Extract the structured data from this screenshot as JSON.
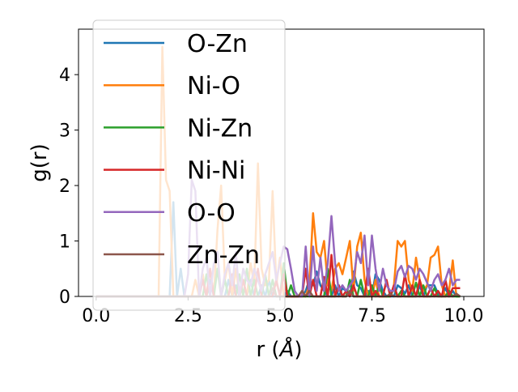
{
  "chart_data": {
    "type": "line",
    "title": "",
    "xlabel": "r (Å)",
    "xlabel_parts": {
      "prefix": "r (",
      "unit": "Å",
      "suffix": ")"
    },
    "ylabel": "g(r)",
    "xlim": [
      -0.48,
      10.55
    ],
    "ylim": [
      0,
      4.82
    ],
    "xticks": [
      0.0,
      2.5,
      5.0,
      7.5,
      10.0
    ],
    "xtick_labels": [
      "0.0",
      "2.5",
      "5.0",
      "7.5",
      "10.0"
    ],
    "yticks": [
      0,
      1,
      2,
      3,
      4
    ],
    "ytick_labels": [
      "0",
      "1",
      "2",
      "3",
      "4"
    ],
    "grid": false,
    "legend_placement": "upper-left",
    "x_grid": {
      "start": 0.0,
      "step": 0.1,
      "count": 100
    },
    "series": [
      {
        "name": "O-Zn",
        "color": "#1f77b4",
        "points": [
          [
            2.1,
            1.7
          ],
          [
            2.3,
            0.5
          ],
          [
            2.9,
            0.3
          ],
          [
            3.1,
            0.3
          ],
          [
            3.6,
            0.3
          ],
          [
            3.8,
            0.2
          ],
          [
            4.2,
            0.3
          ],
          [
            4.5,
            0.2
          ],
          [
            4.7,
            0.3
          ],
          [
            5.2,
            0.1
          ],
          [
            5.7,
            0.1
          ],
          [
            5.8,
            0.3
          ],
          [
            5.9,
            0.2
          ],
          [
            6.0,
            0.45
          ],
          [
            6.1,
            0.2
          ],
          [
            6.2,
            0.1
          ],
          [
            6.5,
            0.2
          ],
          [
            6.7,
            0.15
          ],
          [
            6.8,
            0.1
          ],
          [
            7.0,
            0.45
          ],
          [
            7.1,
            0.2
          ],
          [
            7.2,
            0.15
          ],
          [
            7.4,
            0.1
          ],
          [
            7.6,
            0.4
          ],
          [
            7.7,
            0.3
          ],
          [
            7.8,
            0.1
          ],
          [
            8.2,
            0.2
          ],
          [
            8.3,
            0.15
          ],
          [
            8.4,
            0.05
          ],
          [
            8.5,
            0.2
          ],
          [
            8.8,
            0.2
          ],
          [
            9.0,
            0.2
          ],
          [
            9.1,
            0.2
          ],
          [
            9.2,
            0.2
          ],
          [
            9.3,
            0.05
          ],
          [
            9.5,
            0.15
          ],
          [
            9.7,
            0.1
          ]
        ]
      },
      {
        "name": "Ni-O",
        "color": "#ff7f0e",
        "points": [
          [
            1.8,
            4.5
          ],
          [
            1.9,
            2.1
          ],
          [
            2.0,
            1.9
          ],
          [
            2.7,
            0.3
          ],
          [
            2.9,
            0.4
          ],
          [
            3.1,
            0.5
          ],
          [
            3.3,
            1.2
          ],
          [
            3.4,
            2.0
          ],
          [
            3.5,
            0.3
          ],
          [
            3.6,
            0.6
          ],
          [
            3.8,
            0.5
          ],
          [
            4.0,
            0.3
          ],
          [
            4.2,
            0.6
          ],
          [
            4.3,
            0.2
          ],
          [
            4.4,
            2.4
          ],
          [
            4.5,
            0.5
          ],
          [
            4.6,
            0.2
          ],
          [
            4.7,
            0.3
          ],
          [
            4.8,
            1.9
          ],
          [
            4.9,
            0.2
          ],
          [
            5.0,
            0.7
          ],
          [
            5.8,
            0.2
          ],
          [
            5.9,
            1.5
          ],
          [
            6.0,
            0.8
          ],
          [
            6.1,
            0.7
          ],
          [
            6.2,
            1.0
          ],
          [
            6.3,
            0.2
          ],
          [
            6.4,
            0.1
          ],
          [
            6.5,
            0.5
          ],
          [
            6.6,
            0.6
          ],
          [
            6.7,
            0.4
          ],
          [
            6.8,
            0.7
          ],
          [
            6.9,
            1.0
          ],
          [
            7.0,
            0.1
          ],
          [
            7.1,
            0.9
          ],
          [
            7.2,
            1.15
          ],
          [
            7.3,
            0.3
          ],
          [
            7.6,
            0.3
          ],
          [
            8.1,
            0.2
          ],
          [
            8.2,
            1.0
          ],
          [
            8.3,
            0.9
          ],
          [
            8.4,
            1.0
          ],
          [
            8.5,
            0.3
          ],
          [
            8.6,
            0.1
          ],
          [
            8.7,
            0.7
          ],
          [
            8.8,
            0.3
          ],
          [
            8.9,
            0.1
          ],
          [
            9.0,
            0.2
          ],
          [
            9.1,
            0.7
          ],
          [
            9.2,
            0.75
          ],
          [
            9.3,
            0.9
          ],
          [
            9.4,
            0.2
          ],
          [
            9.6,
            0.1
          ],
          [
            9.7,
            0.65
          ]
        ]
      },
      {
        "name": "Ni-Zn",
        "color": "#2ca02c",
        "points": [
          [
            3.0,
            0.4
          ],
          [
            3.3,
            0.5
          ],
          [
            3.5,
            0.3
          ],
          [
            3.9,
            0.4
          ],
          [
            4.1,
            0.5
          ],
          [
            4.3,
            0.3
          ],
          [
            4.6,
            0.4
          ],
          [
            4.8,
            0.3
          ],
          [
            5.1,
            0.6
          ],
          [
            5.3,
            0.2
          ],
          [
            6.3,
            0.5
          ],
          [
            6.6,
            0.2
          ],
          [
            6.9,
            0.3
          ],
          [
            7.2,
            0.3
          ],
          [
            7.5,
            0.2
          ],
          [
            7.7,
            0.2
          ],
          [
            8.1,
            0.15
          ],
          [
            8.3,
            0.1
          ],
          [
            8.7,
            0.25
          ],
          [
            8.9,
            0.2
          ],
          [
            9.2,
            0.15
          ],
          [
            9.6,
            0.1
          ]
        ]
      },
      {
        "name": "Ni-Ni",
        "color": "#d62728",
        "points": [
          [
            2.9,
            0.3
          ],
          [
            3.1,
            0.5
          ],
          [
            3.7,
            0.4
          ],
          [
            4.0,
            0.3
          ],
          [
            4.4,
            0.5
          ],
          [
            4.9,
            0.3
          ],
          [
            5.1,
            0.4
          ],
          [
            5.7,
            0.5
          ],
          [
            5.9,
            0.3
          ],
          [
            6.2,
            0.35
          ],
          [
            6.4,
            0.75
          ],
          [
            6.6,
            0.2
          ],
          [
            6.8,
            0.1
          ],
          [
            7.0,
            0.2
          ],
          [
            7.4,
            0.5
          ],
          [
            7.6,
            0.1
          ],
          [
            7.9,
            0.3
          ],
          [
            8.1,
            0.2
          ],
          [
            8.4,
            0.4
          ],
          [
            8.6,
            0.2
          ],
          [
            8.8,
            0.3
          ],
          [
            9.1,
            0.15
          ],
          [
            9.3,
            0.1
          ],
          [
            9.5,
            0.3
          ],
          [
            9.7,
            0.15
          ],
          [
            9.8,
            0.15
          ],
          [
            9.9,
            0.15
          ]
        ]
      },
      {
        "name": "O-O",
        "color": "#9467bd",
        "points": [
          [
            2.5,
            0.4
          ],
          [
            2.6,
            2.1
          ],
          [
            2.7,
            1.9
          ],
          [
            2.9,
            0.5
          ],
          [
            3.0,
            0.7
          ],
          [
            3.2,
            0.6
          ],
          [
            3.3,
            0.8
          ],
          [
            3.5,
            0.4
          ],
          [
            3.6,
            0.6
          ],
          [
            3.7,
            0.2
          ],
          [
            3.8,
            0.8
          ],
          [
            4.0,
            0.5
          ],
          [
            4.1,
            0.3
          ],
          [
            4.2,
            0.2
          ],
          [
            4.3,
            0.5
          ],
          [
            4.4,
            0.3
          ],
          [
            4.5,
            0.1
          ],
          [
            4.6,
            0.4
          ],
          [
            4.7,
            0.6
          ],
          [
            4.8,
            0.8
          ],
          [
            4.9,
            0.3
          ],
          [
            5.0,
            0.6
          ],
          [
            5.1,
            0.9
          ],
          [
            5.2,
            0.85
          ],
          [
            5.3,
            0.5
          ],
          [
            5.4,
            0.1
          ],
          [
            5.7,
            0.9
          ],
          [
            5.9,
            0.9
          ],
          [
            6.0,
            0.1
          ],
          [
            6.1,
            0.7
          ],
          [
            6.2,
            0.1
          ],
          [
            6.3,
            0.6
          ],
          [
            6.4,
            1.45
          ],
          [
            6.5,
            0.6
          ],
          [
            6.6,
            0.1
          ],
          [
            6.7,
            0.2
          ],
          [
            6.8,
            0.1
          ],
          [
            6.9,
            0.2
          ],
          [
            7.0,
            0.3
          ],
          [
            7.1,
            0.8
          ],
          [
            7.2,
            0.6
          ],
          [
            7.3,
            1.1
          ],
          [
            7.4,
            0.2
          ],
          [
            7.5,
            1.1
          ],
          [
            7.6,
            0.5
          ],
          [
            7.7,
            0.1
          ],
          [
            7.8,
            0.5
          ],
          [
            7.9,
            0.2
          ],
          [
            8.0,
            0.1
          ],
          [
            8.1,
            0.1
          ],
          [
            8.2,
            0.45
          ],
          [
            8.3,
            0.55
          ],
          [
            8.4,
            0.35
          ],
          [
            8.5,
            0.55
          ],
          [
            8.6,
            0.5
          ],
          [
            8.7,
            0.3
          ],
          [
            8.8,
            0.5
          ],
          [
            8.9,
            0.4
          ],
          [
            9.0,
            0.25
          ],
          [
            9.1,
            0.1
          ],
          [
            9.2,
            0.3
          ],
          [
            9.3,
            0.4
          ],
          [
            9.4,
            0.2
          ],
          [
            9.5,
            0.3
          ],
          [
            9.6,
            0.5
          ],
          [
            9.7,
            0.2
          ],
          [
            9.8,
            0.3
          ],
          [
            9.9,
            0.3
          ]
        ]
      },
      {
        "name": "Zn-Zn",
        "color": "#8c564b",
        "points": [
          [
            4.8,
            0.15
          ],
          [
            5.6,
            0.1
          ],
          [
            5.8,
            0.1
          ],
          [
            6.9,
            0.1
          ],
          [
            8.0,
            0.05
          ],
          [
            9.8,
            0.05
          ]
        ]
      }
    ]
  }
}
